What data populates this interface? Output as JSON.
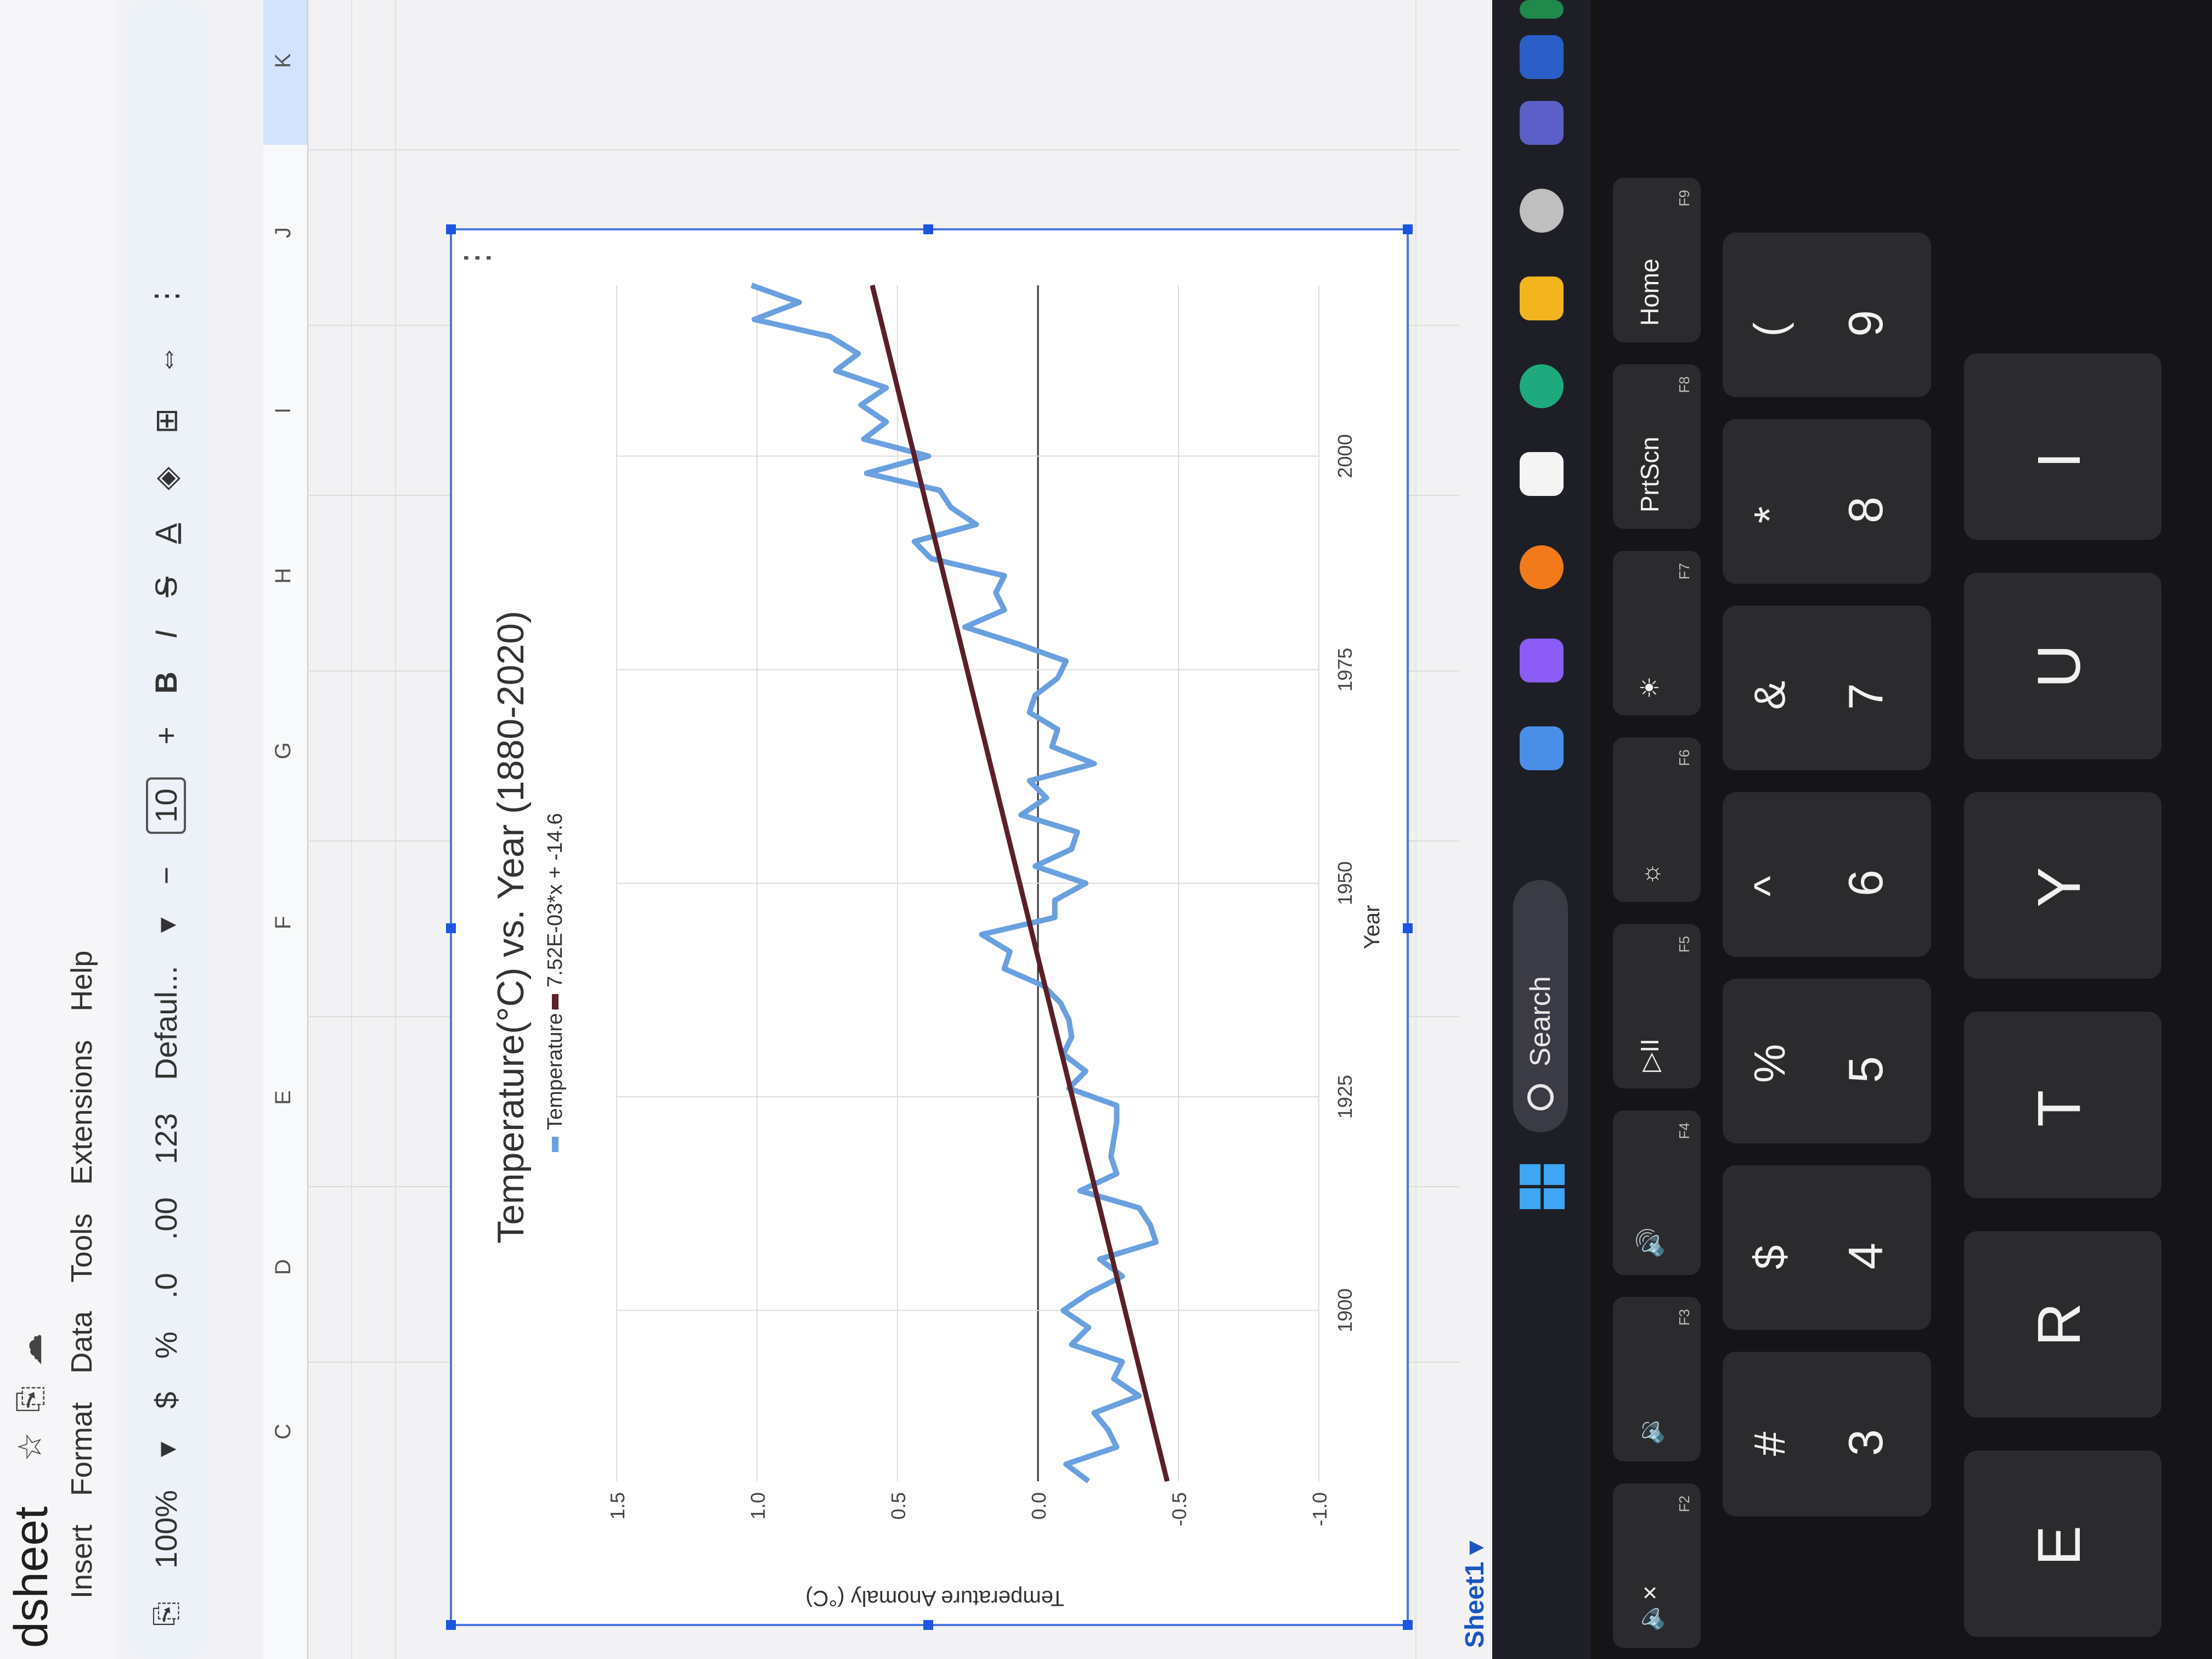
{
  "app": {
    "doc_title": "dsheet",
    "menus": [
      "Insert",
      "Format",
      "Data",
      "Tools",
      "Extensions",
      "Help"
    ],
    "toolbar": {
      "zoom": "100%",
      "currency": "$",
      "percent": "%",
      "dec_decrease": ".0",
      "dec_increase": ".00",
      "number_format": "123",
      "font": "Defaul...",
      "minus": "−",
      "font_size": "10",
      "plus": "+",
      "bold": "B",
      "italic": "I",
      "strike": "S",
      "text_color": "A"
    },
    "columns": [
      "C",
      "D",
      "E",
      "F",
      "G",
      "H",
      "I",
      "J",
      "K"
    ],
    "sheet_tab": "Sheet1",
    "taskbar_search": "Search"
  },
  "keyboard": {
    "fkeys": [
      {
        "label": "🔈×",
        "code": "F2"
      },
      {
        "label": "🔉",
        "code": "F3"
      },
      {
        "label": "🔊",
        "code": "F4"
      },
      {
        "label": "▷II",
        "code": "F5"
      },
      {
        "label": "☼",
        "code": "F6"
      },
      {
        "label": "☀",
        "code": "F7"
      },
      {
        "label": "PrtScn",
        "code": "F8"
      },
      {
        "label": "Home",
        "code": "F9"
      }
    ],
    "number_keys": [
      {
        "sym": "#",
        "digit": "3"
      },
      {
        "sym": "$",
        "digit": "4"
      },
      {
        "sym": "%",
        "digit": "5"
      },
      {
        "sym": "^",
        "digit": "6"
      },
      {
        "sym": "&",
        "digit": "7"
      },
      {
        "sym": "*",
        "digit": "8"
      },
      {
        "sym": "(",
        "digit": "9"
      }
    ],
    "letter_keys": [
      "E",
      "R",
      "T",
      "Y",
      "U",
      "I"
    ]
  },
  "chart_data": {
    "type": "line",
    "title": "Temperature(°C) vs. Year (1880-2020)",
    "xlabel": "Year",
    "ylabel": "Temperature Anomaly (°C)",
    "xlim": [
      1880,
      2020
    ],
    "ylim": [
      -1.0,
      1.5
    ],
    "xticks": [
      1900,
      1925,
      1950,
      1975,
      2000
    ],
    "yticks": [
      -1.0,
      -0.5,
      0.0,
      0.5,
      1.0,
      1.5
    ],
    "ytick_labels": [
      "-1.0",
      "-0.5",
      "0.0",
      "0.5",
      "1.0",
      "1.5"
    ],
    "grid": true,
    "legend_position": "top",
    "series": [
      {
        "name": "Temperature",
        "color": "#6aa0e0",
        "x": [
          1880,
          1882,
          1884,
          1886,
          1888,
          1890,
          1892,
          1894,
          1896,
          1898,
          1900,
          1902,
          1904,
          1906,
          1908,
          1910,
          1912,
          1914,
          1916,
          1918,
          1920,
          1922,
          1924,
          1926,
          1928,
          1930,
          1932,
          1934,
          1936,
          1938,
          1940,
          1942,
          1944,
          1946,
          1948,
          1950,
          1952,
          1954,
          1956,
          1958,
          1960,
          1962,
          1964,
          1966,
          1968,
          1970,
          1972,
          1974,
          1976,
          1978,
          1980,
          1982,
          1984,
          1986,
          1988,
          1990,
          1992,
          1994,
          1996,
          1998,
          2000,
          2002,
          2004,
          2006,
          2008,
          2010,
          2012,
          2014,
          2016,
          2018,
          2020
        ],
        "y": [
          -0.18,
          -0.1,
          -0.28,
          -0.25,
          -0.2,
          -0.36,
          -0.27,
          -0.3,
          -0.12,
          -0.18,
          -0.09,
          -0.18,
          -0.3,
          -0.22,
          -0.42,
          -0.4,
          -0.36,
          -0.15,
          -0.28,
          -0.26,
          -0.27,
          -0.28,
          -0.28,
          -0.11,
          -0.17,
          -0.09,
          -0.12,
          -0.11,
          -0.08,
          -0.02,
          0.12,
          0.1,
          0.2,
          -0.06,
          -0.06,
          -0.17,
          0.01,
          -0.12,
          -0.14,
          0.06,
          -0.03,
          0.03,
          -0.2,
          -0.05,
          -0.07,
          0.03,
          0.01,
          -0.07,
          -0.1,
          0.07,
          0.26,
          0.12,
          0.15,
          0.12,
          0.38,
          0.44,
          0.22,
          0.31,
          0.35,
          0.61,
          0.39,
          0.62,
          0.54,
          0.63,
          0.54,
          0.72,
          0.64,
          0.74,
          1.01,
          0.85,
          1.02
        ]
      },
      {
        "name": "7.52E-03*x + -14.6",
        "color": "#5b1f2a",
        "x": [
          1880,
          2020
        ],
        "y": [
          -0.46,
          0.59
        ]
      }
    ]
  }
}
